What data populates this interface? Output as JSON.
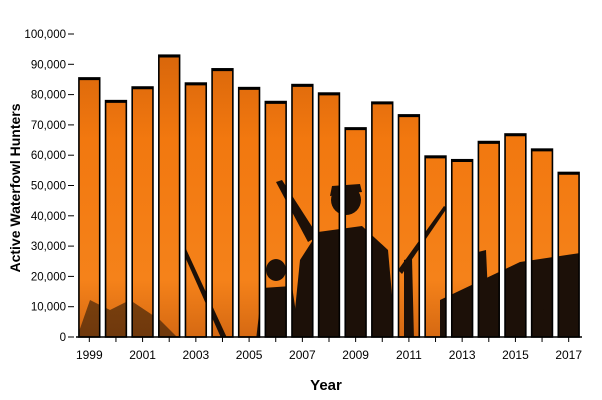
{
  "chart_data": {
    "type": "bar",
    "title": "",
    "xlabel": "Year",
    "ylabel": "Active Waterfowl Hunters",
    "ylim": [
      0,
      100000
    ],
    "yticks": [
      "0",
      "10,000",
      "20,000",
      "30,000",
      "40,000",
      "50,000",
      "60,000",
      "70,000",
      "80,000",
      "90,000",
      "100,000"
    ],
    "xticks": [
      "1999",
      "2001",
      "2003",
      "2005",
      "2007",
      "2009",
      "2011",
      "2013",
      "2015",
      "2017"
    ],
    "categories": [
      "1999",
      "2000",
      "2001",
      "2002",
      "2003",
      "2004",
      "2005",
      "2006",
      "2007",
      "2008",
      "2009",
      "2010",
      "2011",
      "2012",
      "2013",
      "2014",
      "2015",
      "2016",
      "2017"
    ],
    "values": [
      85500,
      78000,
      82500,
      93000,
      83800,
      88500,
      82300,
      77700,
      83300,
      80500,
      69000,
      77500,
      73300,
      59700,
      58500,
      64500,
      67000,
      62000,
      54300
    ],
    "grid": false,
    "legend": "none",
    "background": "hunter-silhouette-sunset-photo",
    "colors": {
      "bar_top": "#d4660a",
      "bar_mid": "#f47c12",
      "bar_bottom": "#c9560a",
      "silhouette": "#1a0f08",
      "bar_outline": "#000000",
      "text": "#000000"
    }
  }
}
